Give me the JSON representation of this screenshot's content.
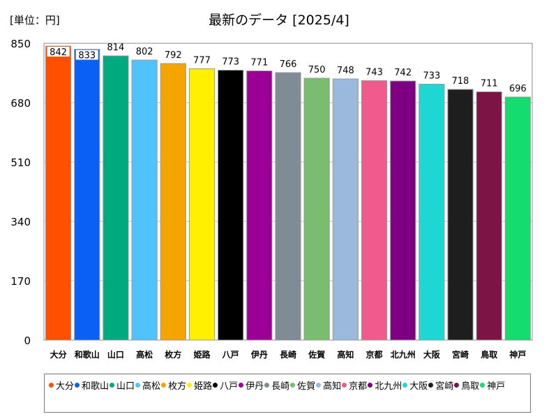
{
  "unit_label": "[単位：円]",
  "chart_data": {
    "type": "bar",
    "title": "最新のデータ [2025/4]",
    "ylim": [
      0,
      850
    ],
    "yticks": [
      0,
      170,
      340,
      510,
      680,
      850
    ],
    "grid": "horizontal",
    "legend_position": "bottom",
    "categories": [
      "大分",
      "和歌山",
      "山口",
      "高松",
      "枚方",
      "姫路",
      "八戸",
      "伊丹",
      "長崎",
      "佐賀",
      "高知",
      "京都",
      "北九州",
      "大阪",
      "宮崎",
      "鳥取",
      "神戸"
    ],
    "values": [
      842,
      833,
      814,
      802,
      792,
      777,
      773,
      771,
      766,
      750,
      748,
      743,
      742,
      733,
      718,
      711,
      696
    ],
    "colors": [
      "#ff5000",
      "#0a5ff5",
      "#00aa7f",
      "#50c3ff",
      "#f5a500",
      "#fff000",
      "#000000",
      "#9b0096",
      "#7f8c96",
      "#78be6e",
      "#9bb9dc",
      "#f05a8c",
      "#7d0082",
      "#1ed7d2",
      "#1e1e1e",
      "#7d1446",
      "#14dc6e"
    ]
  }
}
